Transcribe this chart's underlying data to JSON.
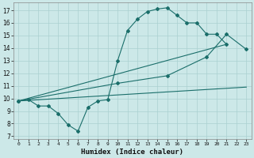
{
  "xlabel": "Humidex (Indice chaleur)",
  "background_color": "#cce8e8",
  "grid_color": "#aad0d0",
  "line_color": "#1a6e6a",
  "xlim": [
    -0.5,
    23.5
  ],
  "ylim": [
    6.8,
    17.6
  ],
  "xticks": [
    0,
    1,
    2,
    3,
    4,
    5,
    6,
    7,
    8,
    9,
    10,
    11,
    12,
    13,
    14,
    15,
    16,
    17,
    18,
    19,
    20,
    21,
    22,
    23
  ],
  "yticks": [
    7,
    8,
    9,
    10,
    11,
    12,
    13,
    14,
    15,
    16,
    17
  ],
  "line1_x": [
    0,
    1,
    2,
    3,
    4,
    5,
    6,
    7,
    8,
    9,
    10,
    11,
    12,
    13,
    14,
    15,
    16,
    17,
    18,
    19,
    20,
    21
  ],
  "line1_y": [
    9.8,
    9.9,
    9.4,
    9.4,
    8.8,
    7.9,
    7.4,
    9.3,
    9.8,
    9.9,
    13.0,
    15.4,
    16.3,
    16.9,
    17.1,
    17.2,
    16.6,
    16.0,
    16.0,
    15.1,
    15.1,
    14.3
  ],
  "line2_x": [
    0,
    21
  ],
  "line2_y": [
    9.8,
    14.3
  ],
  "line3_x": [
    0,
    23
  ],
  "line3_y": [
    9.8,
    10.9
  ],
  "line4_x": [
    0,
    10,
    15,
    19,
    21,
    23
  ],
  "line4_y": [
    9.8,
    11.2,
    11.8,
    13.3,
    15.1,
    13.9
  ]
}
